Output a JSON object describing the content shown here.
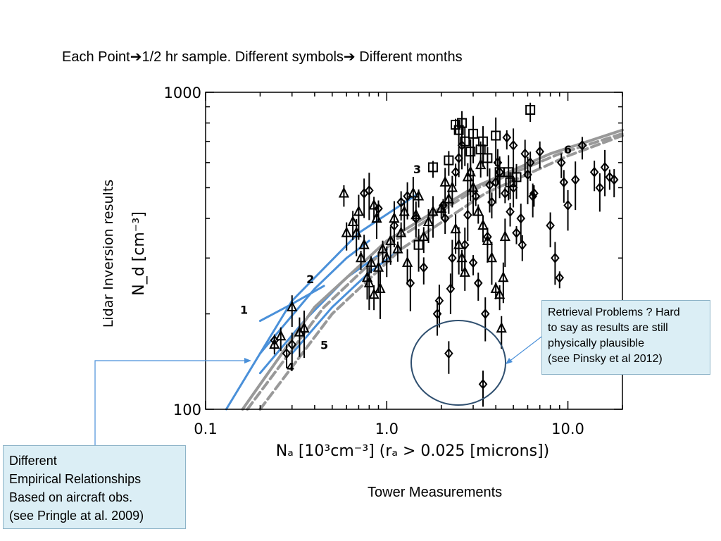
{
  "header": {
    "part1": "Each Point",
    "arrow": "➔",
    "part2": "1/2 hr sample. Different symbols",
    "part3": " Different months"
  },
  "chart_data": {
    "type": "scatter",
    "x_scale": "log",
    "y_scale": "log",
    "xlim": [
      0.1,
      20
    ],
    "ylim": [
      100,
      1000
    ],
    "x_ticks": [
      "0.1",
      "1.0",
      "10.0"
    ],
    "y_ticks": [
      "100",
      "1000"
    ],
    "xlabel": "Nₐ [10³cm⁻³] (rₐ >  0.025 [microns])",
    "ylabel_outer": "Lidar Inversion results",
    "ylabel_inner": "N_d [cm⁻³]",
    "grid": false,
    "curve_labels": [
      "1",
      "2",
      "3",
      "4",
      "5",
      "6"
    ],
    "relationships": [
      {
        "label": "1",
        "color": "#4a90d9",
        "style": "solid",
        "points": [
          [
            0.2,
            190
          ],
          [
            0.3,
            215
          ],
          [
            0.45,
            245
          ]
        ]
      },
      {
        "label": "2",
        "color": "#4a90d9",
        "style": "solid",
        "points": [
          [
            0.2,
            150
          ],
          [
            0.4,
            240
          ],
          [
            0.6,
            300
          ],
          [
            0.8,
            340
          ]
        ]
      },
      {
        "label": "3",
        "color": "#4a90d9",
        "style": "solid",
        "points": [
          [
            0.13,
            100
          ],
          [
            0.3,
            220
          ],
          [
            0.7,
            360
          ],
          [
            1.5,
            480
          ]
        ]
      },
      {
        "label": "4",
        "color": "#4a90d9",
        "style": "solid",
        "points": [
          [
            0.2,
            130
          ],
          [
            0.35,
            190
          ],
          [
            0.6,
            260
          ],
          [
            1.0,
            320
          ]
        ]
      },
      {
        "label": "5",
        "color": "#4a90d9",
        "style": "solid",
        "points": [
          [
            0.3,
            150
          ],
          [
            0.5,
            210
          ],
          [
            0.8,
            270
          ],
          [
            1.2,
            320
          ]
        ]
      },
      {
        "label": "6",
        "color": "#999999",
        "style": "solid",
        "points": [
          [
            0.16,
            100
          ],
          [
            0.4,
            210
          ],
          [
            1.0,
            340
          ],
          [
            3.0,
            500
          ],
          [
            8.0,
            640
          ],
          [
            20.0,
            760
          ]
        ]
      },
      {
        "label": "",
        "color": "#999999",
        "style": "dashed",
        "points": [
          [
            0.17,
            100
          ],
          [
            0.45,
            210
          ],
          [
            1.1,
            340
          ],
          [
            3.2,
            500
          ],
          [
            9.0,
            640
          ],
          [
            20.0,
            740
          ]
        ]
      },
      {
        "label": "",
        "color": "#999999",
        "style": "dashed",
        "points": [
          [
            0.2,
            100
          ],
          [
            0.5,
            200
          ],
          [
            1.2,
            320
          ],
          [
            3.5,
            480
          ],
          [
            10.0,
            630
          ],
          [
            20.0,
            730
          ]
        ]
      }
    ],
    "series": [
      {
        "marker": "triangle",
        "points": [
          [
            0.24,
            160
          ],
          [
            0.26,
            170
          ],
          [
            0.3,
            210
          ],
          [
            0.33,
            175
          ],
          [
            0.35,
            180
          ],
          [
            0.58,
            480
          ],
          [
            0.65,
            390
          ],
          [
            0.68,
            360
          ],
          [
            0.7,
            420
          ],
          [
            0.72,
            300
          ],
          [
            0.75,
            330
          ],
          [
            0.78,
            260
          ],
          [
            0.8,
            250
          ],
          [
            0.82,
            290
          ],
          [
            0.85,
            230
          ],
          [
            0.88,
            400
          ],
          [
            0.9,
            280
          ],
          [
            0.92,
            240
          ],
          [
            0.95,
            320
          ],
          [
            1.0,
            300
          ],
          [
            1.05,
            340
          ],
          [
            1.1,
            400
          ],
          [
            1.15,
            320
          ],
          [
            1.2,
            360
          ],
          [
            1.3,
            290
          ],
          [
            1.4,
            480
          ],
          [
            1.5,
            470
          ],
          [
            1.6,
            350
          ],
          [
            1.7,
            390
          ],
          [
            1.8,
            420
          ],
          [
            2.0,
            430
          ],
          [
            2.2,
            460
          ],
          [
            2.3,
            500
          ],
          [
            2.4,
            370
          ],
          [
            2.5,
            330
          ],
          [
            2.6,
            300
          ],
          [
            2.7,
            270
          ],
          [
            2.8,
            540
          ],
          [
            3.0,
            500
          ],
          [
            3.2,
            420
          ],
          [
            3.4,
            380
          ],
          [
            3.6,
            340
          ],
          [
            3.8,
            300
          ],
          [
            4.0,
            240
          ],
          [
            4.2,
            230
          ],
          [
            4.3,
            180
          ],
          [
            4.4,
            260
          ],
          [
            4.5,
            350
          ],
          [
            0.85,
            440
          ],
          [
            1.25,
            420
          ],
          [
            2.1,
            520
          ],
          [
            2.9,
            560
          ],
          [
            3.3,
            590
          ],
          [
            0.6,
            360
          ],
          [
            1.45,
            410
          ]
        ]
      },
      {
        "marker": "diamond",
        "points": [
          [
            0.24,
            165
          ],
          [
            0.28,
            150
          ],
          [
            0.3,
            160
          ],
          [
            0.75,
            480
          ],
          [
            0.8,
            490
          ],
          [
            0.9,
            430
          ],
          [
            1.2,
            450
          ],
          [
            1.3,
            470
          ],
          [
            1.35,
            250
          ],
          [
            1.45,
            400
          ],
          [
            1.6,
            280
          ],
          [
            1.9,
            200
          ],
          [
            1.95,
            220
          ],
          [
            2.05,
            440
          ],
          [
            2.1,
            400
          ],
          [
            2.2,
            150
          ],
          [
            2.25,
            240
          ],
          [
            2.3,
            300
          ],
          [
            2.4,
            560
          ],
          [
            2.5,
            620
          ],
          [
            2.6,
            680
          ],
          [
            2.7,
            330
          ],
          [
            3.0,
            290
          ],
          [
            3.2,
            250
          ],
          [
            3.4,
            120
          ],
          [
            3.5,
            200
          ],
          [
            3.6,
            350
          ],
          [
            3.8,
            450
          ],
          [
            4.0,
            520
          ],
          [
            4.2,
            560
          ],
          [
            4.5,
            480
          ],
          [
            4.8,
            420
          ],
          [
            5.0,
            500
          ],
          [
            5.5,
            400
          ],
          [
            6.0,
            550
          ],
          [
            6.5,
            480
          ],
          [
            6.2,
            600
          ],
          [
            5.8,
            640
          ],
          [
            5.0,
            680
          ],
          [
            4.6,
            720
          ],
          [
            7.0,
            650
          ],
          [
            8.0,
            380
          ],
          [
            8.5,
            300
          ],
          [
            9.0,
            260
          ],
          [
            9.2,
            600
          ],
          [
            9.5,
            520
          ],
          [
            10.0,
            440
          ],
          [
            11.0,
            530
          ],
          [
            12.0,
            680
          ],
          [
            14.0,
            560
          ],
          [
            15.0,
            500
          ],
          [
            16.0,
            580
          ],
          [
            17.0,
            540
          ],
          [
            18.0,
            530
          ],
          [
            4.1,
            600
          ],
          [
            3.7,
            510
          ],
          [
            5.2,
            360
          ],
          [
            5.6,
            330
          ],
          [
            6.4,
            470
          ],
          [
            2.8,
            410
          ],
          [
            3.1,
            470
          ],
          [
            1.1,
            380
          ]
        ]
      },
      {
        "marker": "square",
        "points": [
          [
            2.4,
            790
          ],
          [
            2.5,
            760
          ],
          [
            2.6,
            800
          ],
          [
            2.7,
            700
          ],
          [
            3.0,
            740
          ],
          [
            3.3,
            660
          ],
          [
            3.6,
            620
          ],
          [
            4.2,
            560
          ],
          [
            4.7,
            560
          ],
          [
            6.2,
            880
          ],
          [
            4.8,
            520
          ],
          [
            5.2,
            540
          ],
          [
            1.5,
            330
          ],
          [
            1.8,
            580
          ],
          [
            2.2,
            610
          ],
          [
            2.9,
            650
          ],
          [
            3.4,
            700
          ],
          [
            4.0,
            730
          ]
        ]
      }
    ],
    "annotations": [
      "Retrieval Problems ? Hard to say as results are still physically plausible (see Pinsky et al 2012)"
    ]
  },
  "callout_left": {
    "line1": "Different",
    "line2": "Empirical Relationships",
    "line3": "Based on aircraft obs.",
    "line4": "(see Pringle at al. 2009)"
  },
  "callout_right": {
    "line1": "Retrieval Problems ? Hard",
    "line2": "to say as results are still",
    "line3": "physically plausible",
    "line4": "(see Pinsky et al 2012)"
  },
  "tower_label": "Tower Measurements",
  "colors": {
    "relationship_blue": "#4a90d9",
    "fit_gray": "#999999",
    "callout_fill": "#dbeef5",
    "callout_border": "#8eb4c8",
    "circle": "#2f4f6f"
  }
}
